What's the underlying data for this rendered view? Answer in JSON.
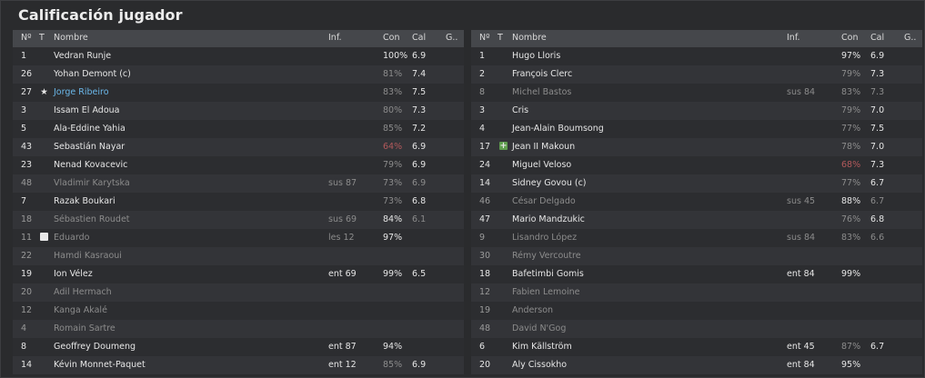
{
  "title": "Calificación jugador",
  "headers": {
    "num": "Nº",
    "t": "T",
    "name": "Nombre",
    "inf": "Inf.",
    "con": "Con",
    "cal": "Cal",
    "g": "G.."
  },
  "colors": {
    "highlight": "#6bb8ea",
    "low_condition": "#b2595b",
    "dim_text": "#8c8c8c"
  },
  "left_team": [
    {
      "num": "1",
      "name": "Vedran Runje",
      "inf": "",
      "con": "100%",
      "cal": "6.9",
      "g": "",
      "icon": "",
      "dim": false,
      "con_dim": false,
      "con_low": false,
      "hl": false
    },
    {
      "num": "26",
      "name": "Yohan Demont (c)",
      "inf": "",
      "con": "81%",
      "cal": "7.4",
      "g": "",
      "icon": "",
      "dim": false,
      "con_dim": true,
      "con_low": false,
      "hl": false
    },
    {
      "num": "27",
      "name": "Jorge Ribeiro",
      "inf": "",
      "con": "83%",
      "cal": "7.5",
      "g": "",
      "icon": "star-icon",
      "dim": false,
      "con_dim": true,
      "con_low": false,
      "hl": true
    },
    {
      "num": "3",
      "name": "Issam El Adoua",
      "inf": "",
      "con": "80%",
      "cal": "7.3",
      "g": "",
      "icon": "",
      "dim": false,
      "con_dim": true,
      "con_low": false,
      "hl": false
    },
    {
      "num": "5",
      "name": "Ala-Eddine Yahia",
      "inf": "",
      "con": "85%",
      "cal": "7.2",
      "g": "",
      "icon": "",
      "dim": false,
      "con_dim": true,
      "con_low": false,
      "hl": false
    },
    {
      "num": "43",
      "name": "Sebastián Nayar",
      "inf": "",
      "con": "64%",
      "cal": "6.9",
      "g": "",
      "icon": "",
      "dim": false,
      "con_dim": false,
      "con_low": true,
      "hl": false
    },
    {
      "num": "23",
      "name": "Nenad Kovacevic",
      "inf": "",
      "con": "79%",
      "cal": "6.9",
      "g": "",
      "icon": "",
      "dim": false,
      "con_dim": true,
      "con_low": false,
      "hl": false
    },
    {
      "num": "48",
      "name": "Vladimir Karytska",
      "inf": "sus 87",
      "con": "73%",
      "cal": "6.9",
      "g": "",
      "icon": "",
      "dim": true,
      "con_dim": true,
      "con_low": false,
      "hl": false
    },
    {
      "num": "7",
      "name": "Razak Boukari",
      "inf": "",
      "con": "73%",
      "cal": "6.8",
      "g": "",
      "icon": "",
      "dim": false,
      "con_dim": true,
      "con_low": false,
      "hl": false
    },
    {
      "num": "18",
      "name": "Sébastien Roudet",
      "inf": "sus 69",
      "con": "84%",
      "cal": "6.1",
      "g": "",
      "icon": "",
      "dim": true,
      "con_dim": false,
      "con_low": false,
      "hl": false
    },
    {
      "num": "11",
      "name": "Eduardo",
      "inf": "les 12",
      "con": "97%",
      "cal": "",
      "g": "",
      "icon": "injury-icon",
      "dim": true,
      "con_dim": false,
      "con_low": false,
      "hl": false
    },
    {
      "num": "22",
      "name": "Hamdi Kasraoui",
      "inf": "",
      "con": "",
      "cal": "",
      "g": "",
      "icon": "",
      "dim": true,
      "con_dim": false,
      "con_low": false,
      "hl": false
    },
    {
      "num": "19",
      "name": "Ion Vélez",
      "inf": "ent 69",
      "con": "99%",
      "cal": "6.5",
      "g": "",
      "icon": "",
      "dim": false,
      "con_dim": false,
      "con_low": false,
      "hl": false
    },
    {
      "num": "20",
      "name": "Adil Hermach",
      "inf": "",
      "con": "",
      "cal": "",
      "g": "",
      "icon": "",
      "dim": true,
      "con_dim": false,
      "con_low": false,
      "hl": false
    },
    {
      "num": "12",
      "name": "Kanga Akalé",
      "inf": "",
      "con": "",
      "cal": "",
      "g": "",
      "icon": "",
      "dim": true,
      "con_dim": false,
      "con_low": false,
      "hl": false
    },
    {
      "num": "4",
      "name": "Romain Sartre",
      "inf": "",
      "con": "",
      "cal": "",
      "g": "",
      "icon": "",
      "dim": true,
      "con_dim": false,
      "con_low": false,
      "hl": false
    },
    {
      "num": "8",
      "name": "Geoffrey Doumeng",
      "inf": "ent 87",
      "con": "94%",
      "cal": "",
      "g": "",
      "icon": "",
      "dim": false,
      "con_dim": false,
      "con_low": false,
      "hl": false
    },
    {
      "num": "14",
      "name": "Kévin Monnet-Paquet",
      "inf": "ent 12",
      "con": "85%",
      "cal": "6.9",
      "g": "",
      "icon": "",
      "dim": false,
      "con_dim": true,
      "con_low": false,
      "hl": false
    }
  ],
  "right_team": [
    {
      "num": "1",
      "name": "Hugo Lloris",
      "inf": "",
      "con": "97%",
      "cal": "6.9",
      "g": "",
      "icon": "",
      "dim": false,
      "con_dim": false,
      "con_low": false,
      "hl": false
    },
    {
      "num": "2",
      "name": "François Clerc",
      "inf": "",
      "con": "79%",
      "cal": "7.3",
      "g": "",
      "icon": "",
      "dim": false,
      "con_dim": true,
      "con_low": false,
      "hl": false
    },
    {
      "num": "8",
      "name": "Michel Bastos",
      "inf": "sus 84",
      "con": "83%",
      "cal": "7.3",
      "g": "",
      "icon": "",
      "dim": true,
      "con_dim": true,
      "con_low": false,
      "hl": false
    },
    {
      "num": "3",
      "name": "Cris",
      "inf": "",
      "con": "79%",
      "cal": "7.0",
      "g": "",
      "icon": "",
      "dim": false,
      "con_dim": true,
      "con_low": false,
      "hl": false
    },
    {
      "num": "4",
      "name": "Jean-Alain Boumsong",
      "inf": "",
      "con": "77%",
      "cal": "7.5",
      "g": "",
      "icon": "",
      "dim": false,
      "con_dim": true,
      "con_low": false,
      "hl": false
    },
    {
      "num": "17",
      "name": "Jean II Makoun",
      "inf": "",
      "con": "78%",
      "cal": "7.0",
      "g": "",
      "icon": "plus-icon",
      "dim": false,
      "con_dim": true,
      "con_low": false,
      "hl": false
    },
    {
      "num": "24",
      "name": "Miguel Veloso",
      "inf": "",
      "con": "68%",
      "cal": "7.3",
      "g": "",
      "icon": "",
      "dim": false,
      "con_dim": false,
      "con_low": true,
      "hl": false
    },
    {
      "num": "14",
      "name": "Sidney Govou (c)",
      "inf": "",
      "con": "77%",
      "cal": "6.7",
      "g": "",
      "icon": "",
      "dim": false,
      "con_dim": true,
      "con_low": false,
      "hl": false
    },
    {
      "num": "46",
      "name": "César Delgado",
      "inf": "sus 45",
      "con": "88%",
      "cal": "6.7",
      "g": "",
      "icon": "",
      "dim": true,
      "con_dim": false,
      "con_low": false,
      "hl": false
    },
    {
      "num": "47",
      "name": "Mario Mandzukic",
      "inf": "",
      "con": "76%",
      "cal": "6.8",
      "g": "",
      "icon": "",
      "dim": false,
      "con_dim": true,
      "con_low": false,
      "hl": false
    },
    {
      "num": "9",
      "name": "Lisandro López",
      "inf": "sus 84",
      "con": "83%",
      "cal": "6.6",
      "g": "",
      "icon": "",
      "dim": true,
      "con_dim": true,
      "con_low": false,
      "hl": false
    },
    {
      "num": "30",
      "name": "Rémy Vercoutre",
      "inf": "",
      "con": "",
      "cal": "",
      "g": "",
      "icon": "",
      "dim": true,
      "con_dim": false,
      "con_low": false,
      "hl": false
    },
    {
      "num": "18",
      "name": "Bafetimbi Gomis",
      "inf": "ent 84",
      "con": "99%",
      "cal": "",
      "g": "",
      "icon": "",
      "dim": false,
      "con_dim": false,
      "con_low": false,
      "hl": false
    },
    {
      "num": "12",
      "name": "Fabien Lemoine",
      "inf": "",
      "con": "",
      "cal": "",
      "g": "",
      "icon": "",
      "dim": true,
      "con_dim": false,
      "con_low": false,
      "hl": false
    },
    {
      "num": "19",
      "name": "Anderson",
      "inf": "",
      "con": "",
      "cal": "",
      "g": "",
      "icon": "",
      "dim": true,
      "con_dim": false,
      "con_low": false,
      "hl": false
    },
    {
      "num": "48",
      "name": "David N'Gog",
      "inf": "",
      "con": "",
      "cal": "",
      "g": "",
      "icon": "",
      "dim": true,
      "con_dim": false,
      "con_low": false,
      "hl": false
    },
    {
      "num": "6",
      "name": "Kim Källström",
      "inf": "ent 45",
      "con": "87%",
      "cal": "6.7",
      "g": "",
      "icon": "",
      "dim": false,
      "con_dim": true,
      "con_low": false,
      "hl": false
    },
    {
      "num": "20",
      "name": "Aly Cissokho",
      "inf": "ent 84",
      "con": "95%",
      "cal": "",
      "g": "",
      "icon": "",
      "dim": false,
      "con_dim": false,
      "con_low": false,
      "hl": false
    }
  ]
}
